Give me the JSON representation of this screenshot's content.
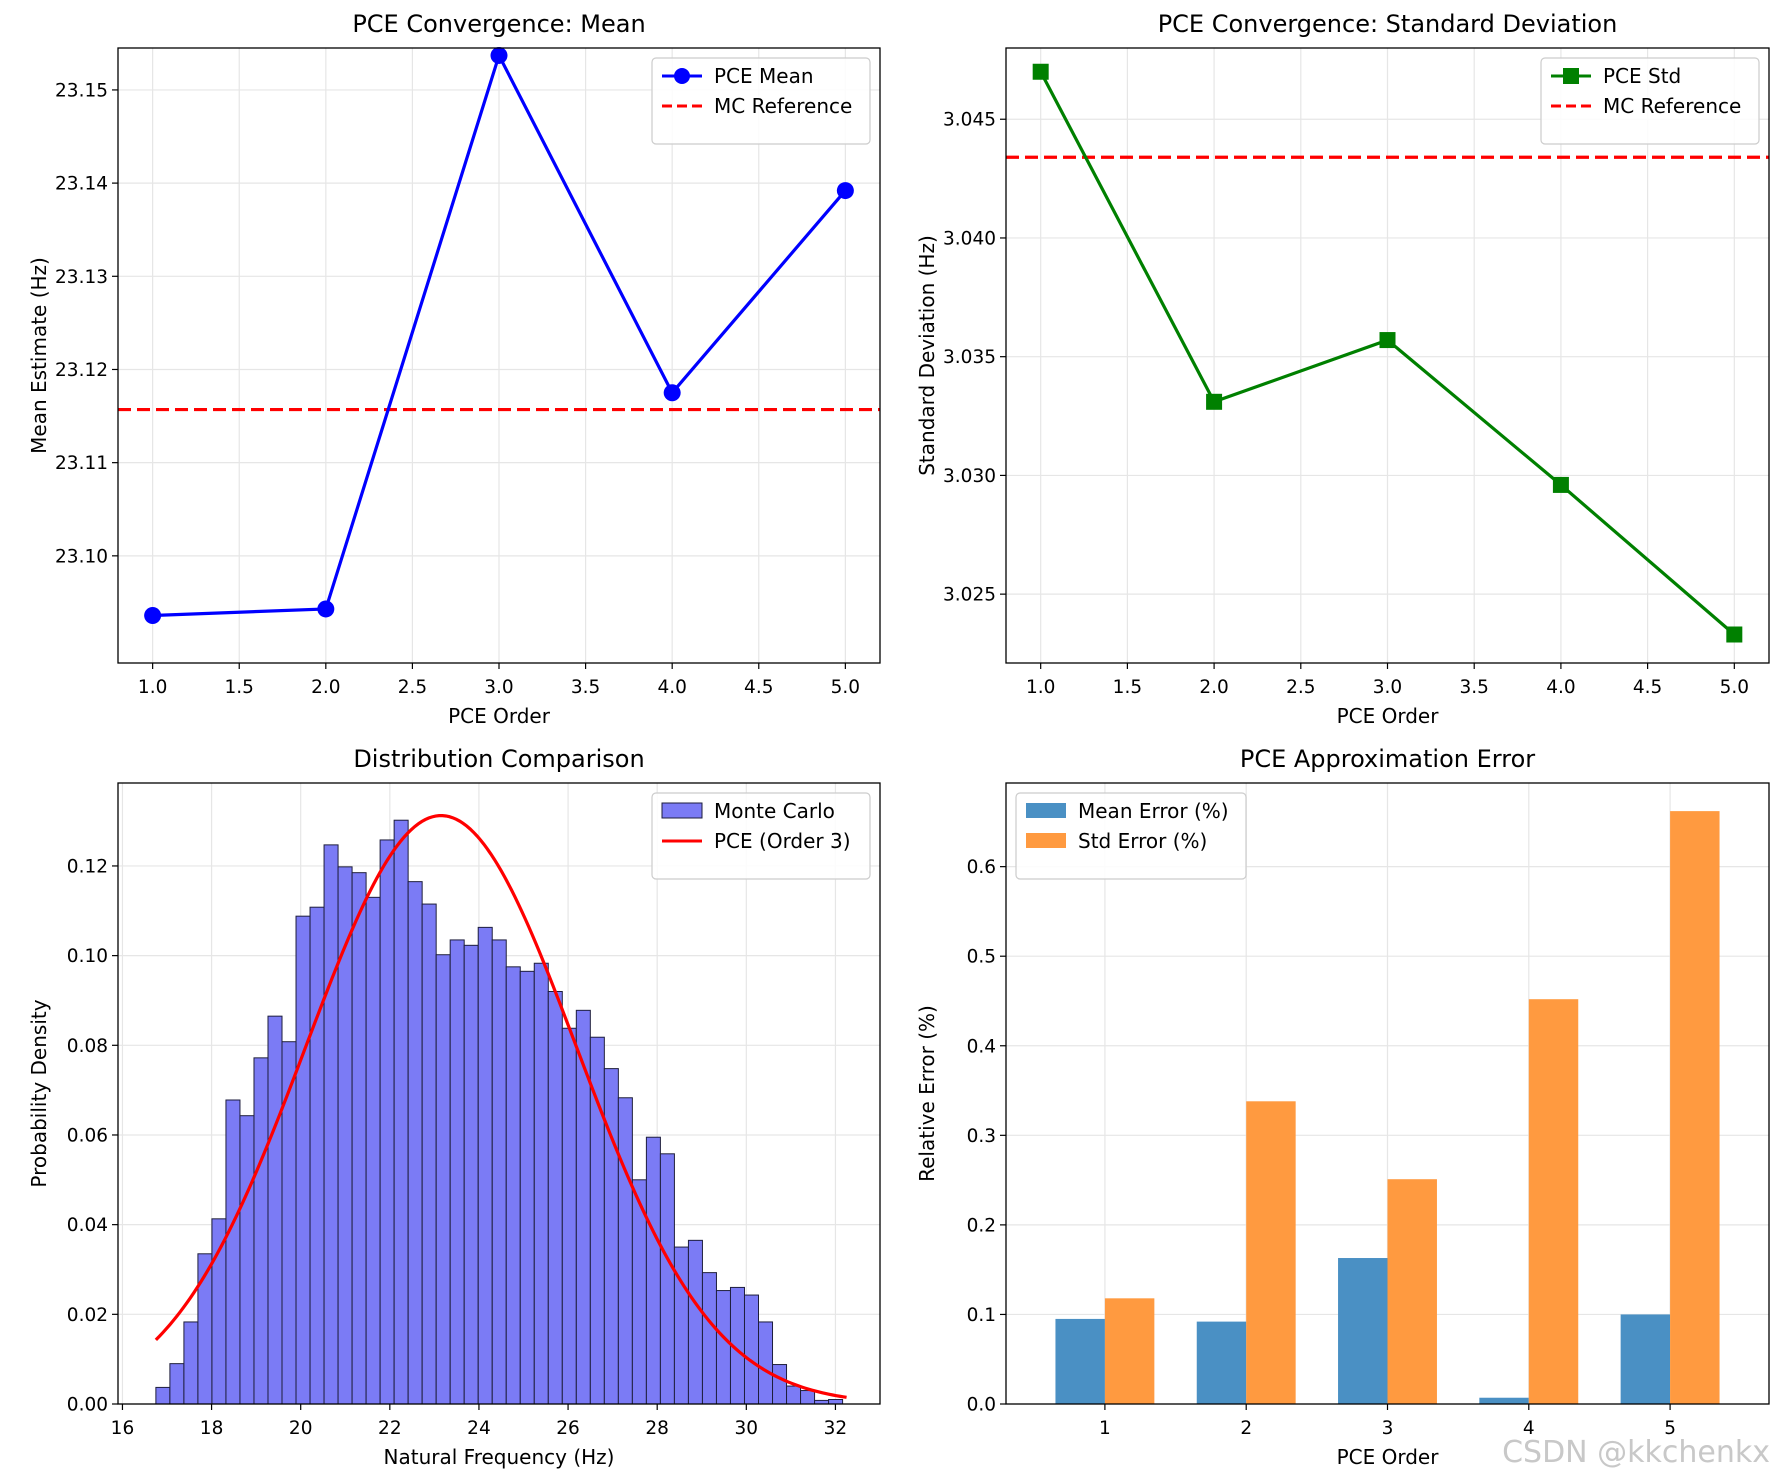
{
  "watermark": "CSDN @kkchenkx",
  "chart_data": [
    {
      "id": "mean",
      "type": "line",
      "title": "PCE Convergence: Mean",
      "xlabel": "PCE Order",
      "ylabel": "Mean Estimate (Hz)",
      "xlim": [
        0.8,
        5.2
      ],
      "ylim": [
        23.0885,
        23.1545
      ],
      "xticks": [
        "1.0",
        "1.5",
        "2.0",
        "2.5",
        "3.0",
        "3.5",
        "4.0",
        "4.5",
        "5.0"
      ],
      "yticks": [
        "23.10",
        "23.11",
        "23.12",
        "23.13",
        "23.14",
        "23.15"
      ],
      "grid": true,
      "legend_position": "upper right",
      "series": [
        {
          "name": "PCE Mean",
          "color": "#0000ff",
          "marker": "circle",
          "x": [
            1,
            2,
            3,
            4,
            5
          ],
          "y": [
            23.0936,
            23.0943,
            23.1537,
            23.1175,
            23.1392
          ]
        }
      ],
      "reference": {
        "name": "MC Reference",
        "color": "#ff0000",
        "value": 23.1157
      }
    },
    {
      "id": "std",
      "type": "line",
      "title": "PCE Convergence: Standard Deviation",
      "xlabel": "PCE Order",
      "ylabel": "Standard Deviation (Hz)",
      "xlim": [
        0.8,
        5.2
      ],
      "ylim": [
        3.0221,
        3.048
      ],
      "xticks": [
        "1.0",
        "1.5",
        "2.0",
        "2.5",
        "3.0",
        "3.5",
        "4.0",
        "4.5",
        "5.0"
      ],
      "yticks": [
        "3.025",
        "3.030",
        "3.035",
        "3.040",
        "3.045"
      ],
      "grid": true,
      "legend_position": "upper right",
      "series": [
        {
          "name": "PCE Std",
          "color": "#008000",
          "marker": "square",
          "x": [
            1,
            2,
            3,
            4,
            5
          ],
          "y": [
            3.047,
            3.0331,
            3.0357,
            3.0296,
            3.0233
          ]
        }
      ],
      "reference": {
        "name": "MC Reference",
        "color": "#ff0000",
        "value": 3.0434
      }
    },
    {
      "id": "dist",
      "type": "bar",
      "title": "Distribution Comparison",
      "xlabel": "Natural Frequency (Hz)",
      "ylabel": "Probability Density",
      "xlim": [
        15.9,
        33.0
      ],
      "ylim": [
        0,
        0.1385
      ],
      "xticks": [
        "16",
        "18",
        "20",
        "22",
        "24",
        "26",
        "28",
        "30",
        "32"
      ],
      "yticks": [
        "0.00",
        "0.02",
        "0.04",
        "0.06",
        "0.08",
        "0.10",
        "0.12"
      ],
      "grid": true,
      "legend_position": "upper right",
      "histogram": {
        "name": "Monte Carlo",
        "color": "#7b7bf5",
        "edge": "#1e1e3c",
        "start": 16.75,
        "bin_width": 0.3145,
        "densities": [
          0.0037,
          0.009,
          0.0183,
          0.0335,
          0.0413,
          0.0678,
          0.0643,
          0.0772,
          0.0865,
          0.0808,
          0.1088,
          0.1108,
          0.1247,
          0.1198,
          0.1185,
          0.113,
          0.1258,
          0.1302,
          0.1165,
          0.1115,
          0.1002,
          0.1035,
          0.1023,
          0.1063,
          0.1035,
          0.0975,
          0.0965,
          0.0983,
          0.092,
          0.0838,
          0.0878,
          0.0818,
          0.0748,
          0.0683,
          0.05,
          0.0595,
          0.0558,
          0.035,
          0.0365,
          0.0293,
          0.0253,
          0.026,
          0.0243,
          0.0183,
          0.0088,
          0.004,
          0.003,
          0.0008,
          0.001
        ]
      },
      "curve": {
        "name": "PCE (Order 3)",
        "color": "#ff0000",
        "mean": 23.15,
        "std": 3.04,
        "x_range": [
          16.75,
          32.25
        ]
      }
    },
    {
      "id": "error",
      "type": "bar",
      "title": "PCE Approximation Error",
      "xlabel": "PCE Order",
      "ylabel": "Relative Error (%)",
      "xlim": [
        0.3,
        5.7
      ],
      "ylim": [
        0,
        0.6934
      ],
      "categories": [
        "1",
        "2",
        "3",
        "4",
        "5"
      ],
      "yticks": [
        "0.0",
        "0.1",
        "0.2",
        "0.3",
        "0.4",
        "0.5",
        "0.6"
      ],
      "grid": true,
      "legend_position": "upper left",
      "series": [
        {
          "name": "Mean Error (%)",
          "color": "#4a90c4",
          "values": [
            0.095,
            0.092,
            0.163,
            0.007,
            0.1
          ]
        },
        {
          "name": "Std Error (%)",
          "color": "#ff9a40",
          "values": [
            0.118,
            0.338,
            0.251,
            0.452,
            0.662
          ]
        }
      ]
    }
  ]
}
